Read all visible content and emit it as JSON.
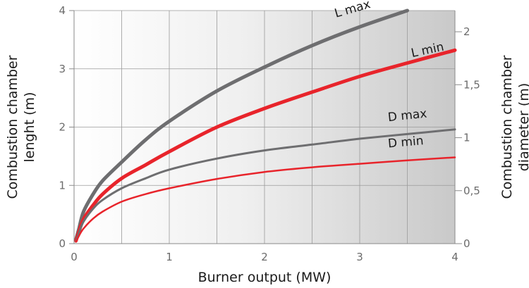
{
  "chart_data": {
    "type": "line",
    "xlabel": "Burner output (MW)",
    "ylabel_left": [
      "Combustion chamber",
      "lenght (m)"
    ],
    "ylabel_right": [
      "Combustion chamber",
      "diameter (m)"
    ],
    "xlim": [
      0,
      4
    ],
    "ylim_left": [
      0,
      4
    ],
    "ylim_right": [
      0,
      2.2
    ],
    "x_ticks": [
      0,
      1,
      2,
      3,
      4
    ],
    "x_tick_labels": [
      "0",
      "1",
      "2",
      "3",
      "4"
    ],
    "y_left_ticks": [
      0,
      1,
      2,
      3,
      4
    ],
    "y_left_tick_labels": [
      "0",
      "1",
      "2",
      "3",
      "4"
    ],
    "y_right_ticks": [
      0,
      0.5,
      1,
      1.5,
      2
    ],
    "y_right_tick_labels": [
      "0",
      "0,5",
      "1",
      "1,5",
      "2"
    ],
    "grid": true,
    "series": [
      {
        "name": "L max",
        "axis": "left",
        "color": "#6e6e70",
        "x": [
          0.02,
          0.05,
          0.1,
          0.2,
          0.3,
          0.5,
          0.75,
          1.0,
          1.5,
          2.0,
          2.5,
          3.0,
          3.5
        ],
        "y": [
          0.07,
          0.25,
          0.55,
          0.85,
          1.08,
          1.4,
          1.78,
          2.1,
          2.62,
          3.03,
          3.4,
          3.72,
          4.0
        ]
      },
      {
        "name": "L min",
        "axis": "left",
        "color": "#e8242b",
        "x": [
          0.02,
          0.05,
          0.1,
          0.2,
          0.3,
          0.5,
          0.75,
          1.0,
          1.5,
          2.0,
          2.5,
          3.0,
          3.5,
          4.0
        ],
        "y": [
          0.05,
          0.2,
          0.42,
          0.66,
          0.85,
          1.12,
          1.35,
          1.58,
          2.0,
          2.32,
          2.6,
          2.87,
          3.1,
          3.32
        ]
      },
      {
        "name": "D max",
        "axis": "left",
        "color": "#6e6e70",
        "x": [
          0.02,
          0.05,
          0.1,
          0.2,
          0.3,
          0.5,
          0.75,
          1.0,
          1.5,
          2.0,
          2.5,
          3.0,
          3.5,
          4.0
        ],
        "y": [
          0.04,
          0.18,
          0.38,
          0.6,
          0.75,
          0.95,
          1.12,
          1.27,
          1.46,
          1.6,
          1.7,
          1.8,
          1.88,
          1.96
        ]
      },
      {
        "name": "D min",
        "axis": "left",
        "color": "#e8242b",
        "x": [
          0.02,
          0.05,
          0.1,
          0.2,
          0.3,
          0.5,
          0.75,
          1.0,
          1.5,
          2.0,
          2.5,
          3.0,
          3.5,
          4.0
        ],
        "y": [
          0.03,
          0.13,
          0.26,
          0.43,
          0.55,
          0.72,
          0.85,
          0.95,
          1.11,
          1.23,
          1.31,
          1.37,
          1.43,
          1.48
        ]
      }
    ],
    "annotations": [
      "L max",
      "L min",
      "D max",
      "D min"
    ]
  }
}
